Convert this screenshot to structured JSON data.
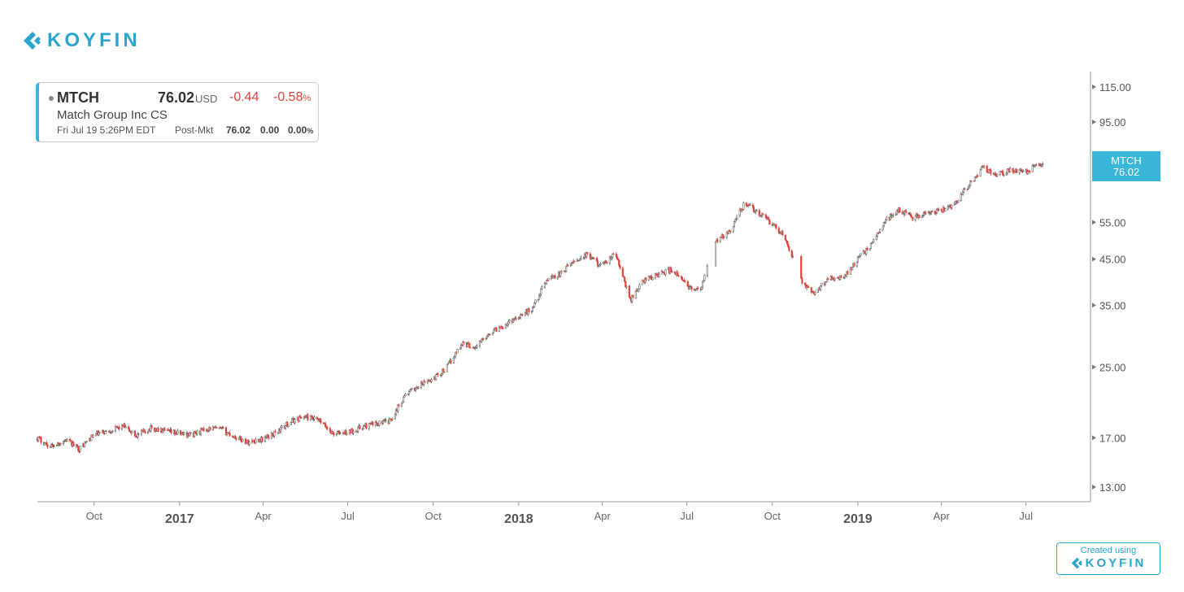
{
  "brand": {
    "name": "KOYFIN",
    "color": "#2aa5cf",
    "icon": "koyfin-chevron-icon"
  },
  "quote": {
    "ticker": "MTCH",
    "price": "76.02",
    "currency": "USD",
    "change": "-0.44",
    "change_pct": "-0.58",
    "pct_sign": "%",
    "company": "Match Group Inc CS",
    "timestamp": "Fri Jul 19 5:26PM EDT",
    "post_label": "Post-Mkt",
    "post_price": "76.02",
    "post_change": "0.00",
    "post_pct": "0.00",
    "post_pct_sign": "%"
  },
  "credit": {
    "line1": "Created using",
    "brand": "KOYFIN"
  },
  "colors": {
    "up": "#555555",
    "down": "#e0423a",
    "accent": "#3ab7d8"
  },
  "chart_data": {
    "type": "candlestick",
    "ticker": "MTCH",
    "y_scale": "log",
    "ylim": [
      12,
      125
    ],
    "y_ticks": [
      "115.00",
      "95.00",
      "55.00",
      "45.00",
      "35.00",
      "25.00",
      "17.00",
      "13.00"
    ],
    "last_price_label": {
      "ticker": "MTCH",
      "value": "76.02"
    },
    "x_range": [
      "2016-08-01",
      "2019-07-31"
    ],
    "x_ticks": [
      {
        "date": "2016-10-01",
        "label": "Oct",
        "major": false
      },
      {
        "date": "2017-01-01",
        "label": "2017",
        "major": true
      },
      {
        "date": "2017-04-01",
        "label": "Apr",
        "major": false
      },
      {
        "date": "2017-07-01",
        "label": "Jul",
        "major": false
      },
      {
        "date": "2017-10-01",
        "label": "Oct",
        "major": false
      },
      {
        "date": "2018-01-01",
        "label": "2018",
        "major": true
      },
      {
        "date": "2018-04-01",
        "label": "Apr",
        "major": false
      },
      {
        "date": "2018-07-01",
        "label": "Jul",
        "major": false
      },
      {
        "date": "2018-10-01",
        "label": "Oct",
        "major": false
      },
      {
        "date": "2019-01-01",
        "label": "2019",
        "major": true
      },
      {
        "date": "2019-04-01",
        "label": "Apr",
        "major": false
      },
      {
        "date": "2019-07-01",
        "label": "Jul",
        "major": false
      }
    ],
    "closes": [
      [
        "2016-08-01",
        17.0
      ],
      [
        "2016-08-15",
        16.2
      ],
      [
        "2016-09-01",
        16.8
      ],
      [
        "2016-09-15",
        16.0
      ],
      [
        "2016-10-01",
        17.3
      ],
      [
        "2016-10-15",
        17.6
      ],
      [
        "2016-11-01",
        18.1
      ],
      [
        "2016-11-15",
        17.2
      ],
      [
        "2016-12-01",
        17.9
      ],
      [
        "2016-12-15",
        17.6
      ],
      [
        "2017-01-01",
        17.4
      ],
      [
        "2017-01-15",
        17.3
      ],
      [
        "2017-02-01",
        17.9
      ],
      [
        "2017-02-15",
        17.8
      ],
      [
        "2017-03-01",
        17.1
      ],
      [
        "2017-03-15",
        16.6
      ],
      [
        "2017-04-01",
        16.9
      ],
      [
        "2017-04-15",
        17.5
      ],
      [
        "2017-05-01",
        18.6
      ],
      [
        "2017-05-15",
        19.1
      ],
      [
        "2017-06-01",
        18.6
      ],
      [
        "2017-06-15",
        17.4
      ],
      [
        "2017-07-01",
        17.5
      ],
      [
        "2017-07-15",
        18.0
      ],
      [
        "2017-08-01",
        18.4
      ],
      [
        "2017-08-15",
        18.6
      ],
      [
        "2017-09-01",
        21.5
      ],
      [
        "2017-09-15",
        22.5
      ],
      [
        "2017-10-01",
        23.5
      ],
      [
        "2017-10-15",
        24.8
      ],
      [
        "2017-11-01",
        28.5
      ],
      [
        "2017-11-15",
        27.8
      ],
      [
        "2017-12-01",
        30.2
      ],
      [
        "2017-12-15",
        31.3
      ],
      [
        "2018-01-01",
        33.0
      ],
      [
        "2018-01-15",
        34.2
      ],
      [
        "2018-02-01",
        40.5
      ],
      [
        "2018-02-15",
        41.5
      ],
      [
        "2018-03-01",
        44.5
      ],
      [
        "2018-03-15",
        46.0
      ],
      [
        "2018-04-01",
        43.2
      ],
      [
        "2018-04-15",
        46.5
      ],
      [
        "2018-05-01",
        36.0
      ],
      [
        "2018-05-15",
        40.0
      ],
      [
        "2018-06-01",
        41.5
      ],
      [
        "2018-06-15",
        42.5
      ],
      [
        "2018-07-01",
        39.0
      ],
      [
        "2018-07-15",
        37.6
      ],
      [
        "2018-08-01",
        49.5
      ],
      [
        "2018-08-15",
        52.0
      ],
      [
        "2018-09-01",
        61.0
      ],
      [
        "2018-09-15",
        58.0
      ],
      [
        "2018-10-01",
        54.5
      ],
      [
        "2018-10-15",
        50.5
      ],
      [
        "2018-11-01",
        40.0
      ],
      [
        "2018-11-15",
        37.0
      ],
      [
        "2018-12-01",
        41.0
      ],
      [
        "2018-12-15",
        40.5
      ],
      [
        "2019-01-01",
        45.0
      ],
      [
        "2019-01-15",
        48.5
      ],
      [
        "2019-02-01",
        56.0
      ],
      [
        "2019-02-15",
        59.0
      ],
      [
        "2019-03-01",
        56.5
      ],
      [
        "2019-03-15",
        57.5
      ],
      [
        "2019-04-01",
        58.5
      ],
      [
        "2019-04-15",
        61.0
      ],
      [
        "2019-05-01",
        67.5
      ],
      [
        "2019-05-15",
        74.0
      ],
      [
        "2019-06-01",
        71.5
      ],
      [
        "2019-06-15",
        73.0
      ],
      [
        "2019-07-01",
        72.5
      ],
      [
        "2019-07-19",
        76.02
      ]
    ],
    "gaps": [
      [
        "2018-07-24",
        "2018-07-31"
      ],
      [
        "2018-10-24",
        "2018-10-31"
      ]
    ]
  }
}
